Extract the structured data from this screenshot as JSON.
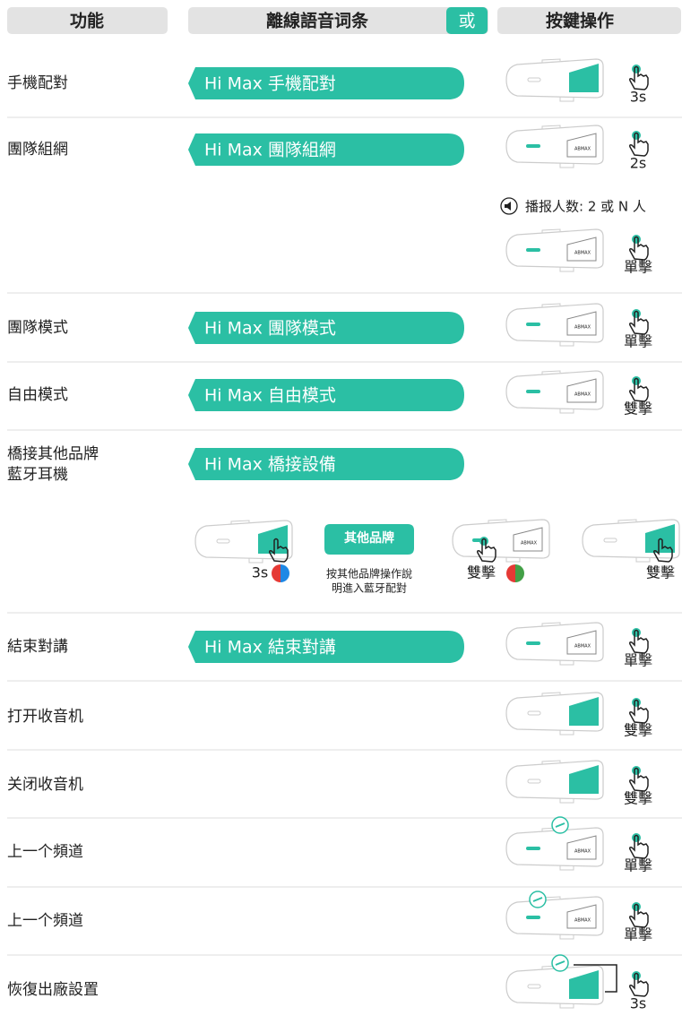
{
  "header": {
    "function": "功能",
    "voice": "離線語音词条",
    "or": "或",
    "buttons": "按鍵操作"
  },
  "device_logo": "ABMAX",
  "rows": [
    {
      "label": "手機配對",
      "voice": "Hi Max 手機配對",
      "action": "3s"
    },
    {
      "label": "團隊組網",
      "voice": "Hi Max 團隊組網",
      "action": "2s",
      "note": "播报人数: 2 或 N 人",
      "action2": "單擊"
    },
    {
      "label": "團隊模式",
      "voice": "Hi Max 團隊模式",
      "action": "單擊"
    },
    {
      "label": "自由模式",
      "voice": "Hi Max 自由模式",
      "action": "雙擊"
    },
    {
      "label_lines": [
        "橋接其他品牌",
        "藍牙耳機"
      ],
      "voice": "Hi Max 橋接設備",
      "steps": [
        {
          "action": "3s"
        },
        {
          "box": "其他品牌",
          "note_lines": [
            "按其他品牌操作說",
            "明進入藍牙配對"
          ]
        },
        {
          "action": "雙擊"
        },
        {
          "action": "雙擊"
        }
      ]
    },
    {
      "label": "結束對講",
      "voice": "Hi Max 結束對講",
      "action": "單擊"
    },
    {
      "label": "打开收音机",
      "action": "雙擊"
    },
    {
      "label": "关闭收音机",
      "action": "雙擊"
    },
    {
      "label": "上一个頻道",
      "action": "單擊"
    },
    {
      "label": "上一个頻道",
      "action": "單擊"
    },
    {
      "label": "恢復出廠設置",
      "action": "3s"
    }
  ]
}
